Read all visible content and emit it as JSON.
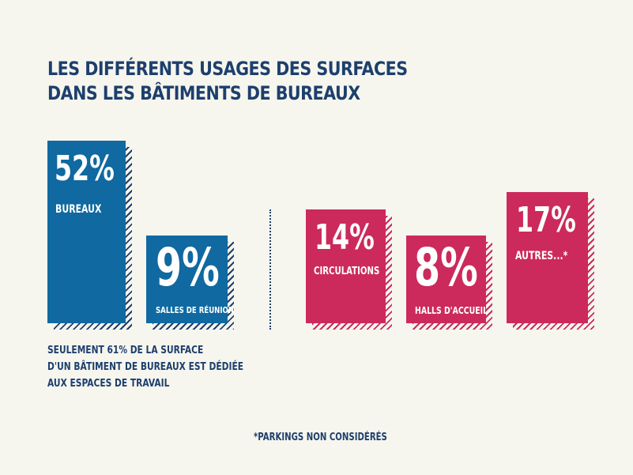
{
  "header": {
    "title_line1": "LES DIFFÉRENTS USAGES DES SURFACES",
    "title_line2": "DANS LES BÂTIMENTS DE BUREAUX"
  },
  "chart_data": {
    "type": "bar",
    "title": "LES DIFFÉRENTS USAGES DES SURFACES DANS LES BÂTIMENTS DE BUREAUX",
    "series": [
      {
        "items": [
          {
            "percent_label": "52%",
            "value": 52,
            "category": "BUREAUX"
          },
          {
            "percent_label": "9%",
            "value": 9,
            "category": "SALLES DE RÉUNION"
          }
        ],
        "color": "#1069a0"
      },
      {
        "items": [
          {
            "percent_label": "14%",
            "value": 14,
            "category": "CIRCULATIONS"
          },
          {
            "percent_label": "8%",
            "value": 8,
            "category": "HALLS D'ACCUEIL"
          },
          {
            "percent_label": "17%",
            "value": 17,
            "category": "AUTRES...*"
          }
        ],
        "color": "#cc2a5c"
      }
    ],
    "annotation": {
      "line1": "SEULEMENT 61% DE LA SURFACE",
      "line2": "D'UN BÂTIMENT DE BUREAUX EST DÉDIÉE",
      "line3": "AUX ESPACES DE TRAVAIL"
    },
    "footnote": "*PARKINGS NON CONSIDÉRÉS"
  }
}
